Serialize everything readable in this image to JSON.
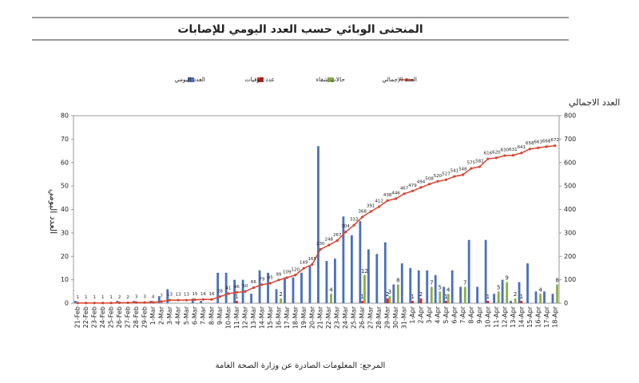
{
  "chart_data": {
    "type": "bar",
    "title": "المنحنى الوبائي حسب العدد اليومي للإصابات",
    "y_label": "العدد اليومي",
    "y2_label": "العدد الاجمالي",
    "source": "المرجع: المعلومات الصادرة عن وزارة الصحة العامة",
    "categories": [
      "21-Feb",
      "22-Feb",
      "23-Feb",
      "24-Feb",
      "25-Feb",
      "26-Feb",
      "27-Feb",
      "28-Feb",
      "29-Feb",
      "1-Mar",
      "2-Mar",
      "3-Mar",
      "4-Mar",
      "5-Mar",
      "6-Mar",
      "7-Mar",
      "8-Mar",
      "9-Mar",
      "10-Mar",
      "11-Mar",
      "12-Mar",
      "13-Mar",
      "14-Mar",
      "15-Mar",
      "16-Mar",
      "17-Mar",
      "18-Mar",
      "19-Mar",
      "20-Mar",
      "21-Mar",
      "22-Mar",
      "23-Mar",
      "24-Mar",
      "25-Mar",
      "26-Mar",
      "27-Mar",
      "28-Mar",
      "29-Mar",
      "30-Mar",
      "31-Mar",
      "1-Apr",
      "2-Apr",
      "3-Apr",
      "4-Apr",
      "5-Apr",
      "6-Apr",
      "7-Apr",
      "8-Apr",
      "9-Apr",
      "10-Apr",
      "11-Apr",
      "12-Apr",
      "13-Apr",
      "14-Apr",
      "15-Apr",
      "16-Apr",
      "17-Apr",
      "18-Apr"
    ],
    "series": [
      {
        "name": "العدد اليومي",
        "type": "bar",
        "color": "#4a6fbd",
        "values": [
          1,
          0,
          0,
          0,
          0,
          1,
          0,
          1,
          0,
          1,
          3,
          6,
          0,
          0,
          2,
          1,
          0,
          13,
          13,
          10,
          10,
          4,
          14,
          13,
          6,
          11,
          11,
          13,
          16,
          67,
          18,
          19,
          37,
          29,
          35,
          23,
          21,
          26,
          8,
          17,
          15,
          14,
          14,
          12,
          7,
          14,
          7,
          27,
          7,
          27,
          4,
          10,
          1,
          9,
          17,
          5,
          5,
          4
        ]
      },
      {
        "name": "عدد الوفيات",
        "type": "bar",
        "color": "#e2231a",
        "values": [
          0,
          0,
          0,
          0,
          0,
          0,
          0,
          0,
          0,
          0,
          0,
          0,
          0,
          0,
          0,
          0,
          0,
          0,
          0,
          1,
          0,
          0,
          0,
          0,
          0,
          0,
          0,
          0,
          0,
          0,
          0,
          0,
          0,
          0,
          1,
          0,
          0,
          2,
          0,
          0,
          1,
          2,
          0,
          0,
          1,
          0,
          0,
          0,
          0,
          1,
          0,
          0,
          0,
          1,
          0,
          0,
          0,
          0
        ]
      },
      {
        "name": "حالات شفاء",
        "type": "bar",
        "color": "#8cae46",
        "values": [
          0,
          0,
          0,
          0,
          0,
          0,
          0,
          0,
          0,
          0,
          0,
          0,
          0,
          0,
          0,
          0,
          0,
          0,
          0,
          0,
          0,
          0,
          0,
          0,
          2,
          0,
          0,
          0,
          0,
          0,
          4,
          0,
          0,
          0,
          12,
          0,
          0,
          3,
          8,
          0,
          0,
          0,
          7,
          5,
          4,
          0,
          7,
          0,
          0,
          0,
          5,
          9,
          2,
          0,
          0,
          4,
          0,
          8
        ]
      },
      {
        "name": "العدد الإجمالي",
        "type": "line",
        "axis": "y2",
        "color": "#d9432e",
        "values": [
          1,
          1,
          1,
          1,
          1,
          2,
          2,
          3,
          3,
          4,
          7,
          13,
          13,
          13,
          15,
          16,
          16,
          28,
          41,
          46,
          50,
          66,
          79,
          85,
          99,
          109,
          120,
          149,
          165,
          230,
          248,
          267,
          304,
          333,
          368,
          391,
          412,
          438,
          446,
          467,
          479,
          494,
          508,
          520,
          527,
          541,
          548,
          575,
          582,
          616,
          620,
          630,
          631,
          641,
          658,
          663,
          668,
          672
        ]
      }
    ],
    "ylim": [
      0,
      80
    ],
    "yticks": [
      0,
      10,
      20,
      30,
      40,
      50,
      60,
      70,
      80
    ],
    "y2lim": [
      0,
      800
    ],
    "y2ticks": [
      0,
      100,
      200,
      300,
      400,
      500,
      600,
      700,
      800
    ],
    "grid": false
  }
}
